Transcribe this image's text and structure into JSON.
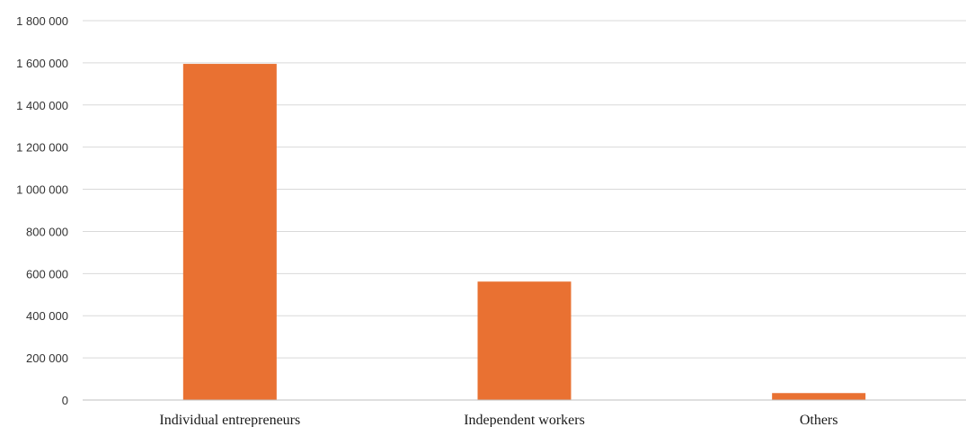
{
  "chart_data": {
    "type": "bar",
    "categories": [
      "Individual entrepreneurs",
      "Independent workers",
      "Others"
    ],
    "values": [
      1595000,
      562000,
      33000
    ],
    "title": "",
    "xlabel": "",
    "ylabel": "",
    "ylim": [
      0,
      1800000
    ],
    "yticks": [
      0,
      200000,
      400000,
      600000,
      800000,
      1000000,
      1200000,
      1400000,
      1600000,
      1800000
    ],
    "ytick_labels": [
      "0",
      "200 000",
      "400 000",
      "600 000",
      "800 000",
      "1 000 000",
      "1 200 000",
      "1 400 000",
      "1 600 000",
      "1 800 000"
    ],
    "grid": true,
    "legend": "none",
    "bar_color": "#E97132"
  }
}
